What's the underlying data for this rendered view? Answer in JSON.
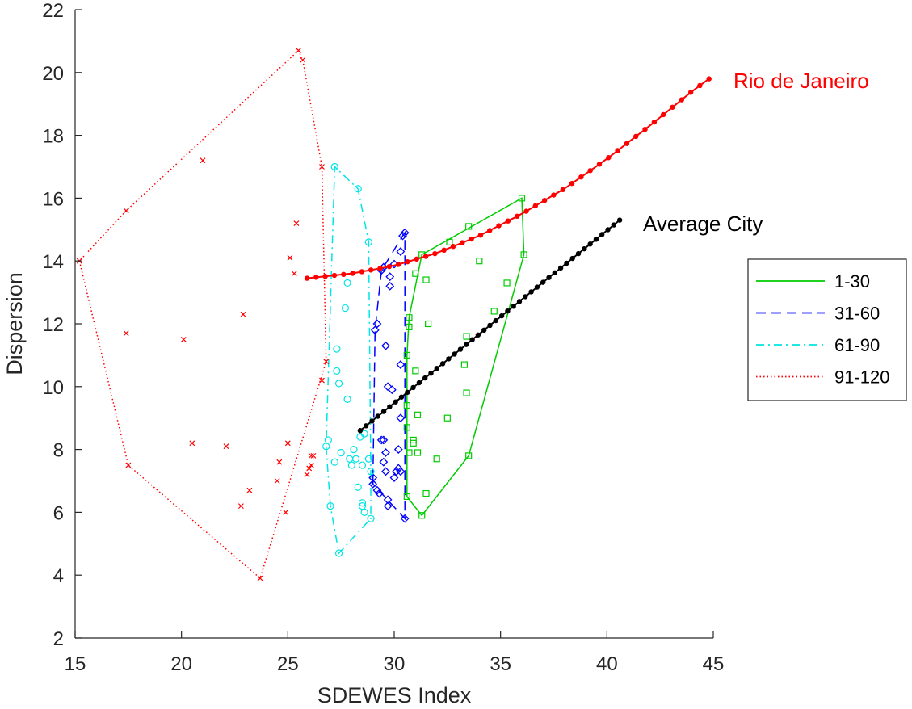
{
  "chart_data": {
    "type": "scatter",
    "xlabel": "SDEWES Index",
    "ylabel": "Dispersion",
    "xlim": [
      15,
      45
    ],
    "ylim": [
      2,
      22
    ],
    "xticks": [
      "15",
      "20",
      "25",
      "30",
      "35",
      "40",
      "45"
    ],
    "yticks": [
      "2",
      "4",
      "6",
      "8",
      "10",
      "12",
      "14",
      "16",
      "18",
      "20",
      "22"
    ],
    "grid": false,
    "legend_position": "right",
    "groups": [
      {
        "name": "1-30",
        "color": "#00cc00",
        "marker": "square",
        "line_style": "solid",
        "points": [
          [
            30.7,
            12.2
          ],
          [
            30.7,
            11.9
          ],
          [
            30.6,
            11.0
          ],
          [
            30.6,
            9.4
          ],
          [
            30.6,
            8.7
          ],
          [
            30.7,
            7.9
          ],
          [
            30.9,
            8.3
          ],
          [
            30.9,
            8.2
          ],
          [
            31.0,
            10.5
          ],
          [
            31.0,
            13.6
          ],
          [
            31.1,
            9.1
          ],
          [
            31.1,
            7.9
          ],
          [
            31.3,
            14.2
          ],
          [
            31.3,
            5.9
          ],
          [
            31.5,
            6.6
          ],
          [
            31.5,
            13.4
          ],
          [
            31.6,
            12.0
          ],
          [
            32.0,
            7.7
          ],
          [
            32.5,
            9.0
          ],
          [
            32.6,
            14.6
          ],
          [
            33.3,
            10.7
          ],
          [
            33.4,
            11.6
          ],
          [
            33.5,
            7.8
          ],
          [
            33.4,
            9.8
          ],
          [
            33.5,
            15.1
          ],
          [
            34.0,
            14.0
          ],
          [
            34.7,
            12.4
          ],
          [
            35.3,
            13.3
          ],
          [
            36.0,
            16.0
          ],
          [
            36.1,
            14.2
          ],
          [
            30.6,
            6.5
          ]
        ],
        "hull": [
          [
            30.6,
            6.5
          ],
          [
            31.3,
            5.9
          ],
          [
            33.5,
            7.8
          ],
          [
            36.1,
            14.2
          ],
          [
            36.0,
            16.0
          ],
          [
            31.3,
            14.2
          ],
          [
            30.7,
            12.2
          ],
          [
            30.6,
            11.0
          ],
          [
            30.6,
            6.5
          ]
        ]
      },
      {
        "name": "31-60",
        "color": "#0000ff",
        "marker": "diamond",
        "line_style": "dashed",
        "points": [
          [
            29.0,
            7.1
          ],
          [
            29.0,
            6.9
          ],
          [
            29.1,
            11.8
          ],
          [
            29.2,
            12.0
          ],
          [
            29.2,
            6.7
          ],
          [
            29.3,
            6.6
          ],
          [
            29.4,
            13.7
          ],
          [
            29.4,
            8.3
          ],
          [
            29.5,
            7.6
          ],
          [
            29.5,
            13.8
          ],
          [
            29.5,
            8.3
          ],
          [
            29.6,
            7.9
          ],
          [
            29.6,
            7.3
          ],
          [
            29.6,
            11.3
          ],
          [
            29.7,
            6.4
          ],
          [
            29.7,
            6.2
          ],
          [
            29.7,
            10.0
          ],
          [
            29.8,
            13.2
          ],
          [
            29.8,
            13.5
          ],
          [
            29.9,
            9.9
          ],
          [
            30.0,
            7.1
          ],
          [
            30.0,
            13.9
          ],
          [
            30.1,
            7.3
          ],
          [
            30.2,
            7.4
          ],
          [
            30.3,
            14.3
          ],
          [
            30.3,
            10.7
          ],
          [
            30.3,
            9.0
          ],
          [
            30.3,
            7.3
          ],
          [
            30.4,
            14.8
          ],
          [
            30.5,
            14.9
          ],
          [
            30.5,
            5.8
          ],
          [
            30.2,
            8.0
          ]
        ],
        "hull": [
          [
            29.0,
            7.1
          ],
          [
            29.0,
            6.9
          ],
          [
            30.5,
            5.8
          ],
          [
            30.5,
            14.9
          ],
          [
            30.4,
            14.8
          ],
          [
            29.4,
            13.7
          ],
          [
            29.1,
            11.8
          ],
          [
            29.0,
            7.1
          ]
        ]
      },
      {
        "name": "61-90",
        "color": "#00e5e5",
        "marker": "circle",
        "line_style": "dashdot",
        "points": [
          [
            26.8,
            8.1
          ],
          [
            26.9,
            8.3
          ],
          [
            27.0,
            6.2
          ],
          [
            27.2,
            17.0
          ],
          [
            27.2,
            7.6
          ],
          [
            27.3,
            11.2
          ],
          [
            27.3,
            10.5
          ],
          [
            27.4,
            10.1
          ],
          [
            27.4,
            4.7
          ],
          [
            27.5,
            7.9
          ],
          [
            27.7,
            12.5
          ],
          [
            27.8,
            13.3
          ],
          [
            27.8,
            9.6
          ],
          [
            27.9,
            7.7
          ],
          [
            28.0,
            7.5
          ],
          [
            28.1,
            8.0
          ],
          [
            28.2,
            7.7
          ],
          [
            28.3,
            16.3
          ],
          [
            28.3,
            6.8
          ],
          [
            28.4,
            8.4
          ],
          [
            28.5,
            7.5
          ],
          [
            28.5,
            6.3
          ],
          [
            28.5,
            6.2
          ],
          [
            28.6,
            6.0
          ],
          [
            28.6,
            8.5
          ],
          [
            28.8,
            14.6
          ],
          [
            28.8,
            7.7
          ],
          [
            28.9,
            5.8
          ],
          [
            28.9,
            7.3
          ]
        ],
        "hull": [
          [
            26.8,
            8.1
          ],
          [
            27.0,
            6.2
          ],
          [
            27.4,
            4.7
          ],
          [
            28.9,
            5.8
          ],
          [
            28.9,
            7.3
          ],
          [
            28.8,
            14.6
          ],
          [
            28.3,
            16.3
          ],
          [
            27.2,
            17.0
          ],
          [
            26.8,
            8.1
          ]
        ]
      },
      {
        "name": "91-120",
        "color": "#ff0000",
        "marker": "cross",
        "line_style": "dotted",
        "points": [
          [
            15.2,
            14.0
          ],
          [
            17.4,
            15.6
          ],
          [
            17.4,
            11.7
          ],
          [
            17.5,
            7.5
          ],
          [
            20.1,
            11.5
          ],
          [
            20.5,
            8.2
          ],
          [
            21.0,
            17.2
          ],
          [
            22.1,
            8.1
          ],
          [
            22.8,
            6.2
          ],
          [
            22.9,
            12.3
          ],
          [
            23.2,
            6.7
          ],
          [
            24.5,
            7.0
          ],
          [
            24.6,
            7.6
          ],
          [
            23.7,
            3.9
          ],
          [
            24.9,
            6.0
          ],
          [
            25.0,
            8.2
          ],
          [
            25.1,
            14.1
          ],
          [
            25.3,
            13.6
          ],
          [
            25.4,
            15.2
          ],
          [
            25.5,
            20.7
          ],
          [
            25.7,
            20.4
          ],
          [
            25.9,
            7.2
          ],
          [
            26.0,
            7.4
          ],
          [
            26.1,
            7.5
          ],
          [
            26.1,
            7.8
          ],
          [
            26.2,
            7.8
          ],
          [
            26.6,
            17.0
          ],
          [
            26.6,
            10.2
          ],
          [
            26.8,
            10.8
          ]
        ],
        "hull": [
          [
            15.2,
            14.0
          ],
          [
            17.5,
            7.5
          ],
          [
            23.7,
            3.9
          ],
          [
            26.8,
            10.8
          ],
          [
            26.6,
            17.0
          ],
          [
            25.7,
            20.4
          ],
          [
            25.5,
            20.7
          ],
          [
            17.4,
            15.6
          ],
          [
            15.2,
            14.0
          ]
        ]
      }
    ],
    "trend_lines": [
      {
        "label": "Rio de Janeiro",
        "color": "#ff0000",
        "x_start": 25.9,
        "x_end": 44.8,
        "n_points": 45,
        "points": [
          [
            25.9,
            13.45
          ],
          [
            28.0,
            13.6
          ],
          [
            30.0,
            13.85
          ],
          [
            32.0,
            14.25
          ],
          [
            34.0,
            14.8
          ],
          [
            36.0,
            15.5
          ],
          [
            38.0,
            16.3
          ],
          [
            40.0,
            17.25
          ],
          [
            42.0,
            18.3
          ],
          [
            44.0,
            19.4
          ],
          [
            44.8,
            19.8
          ]
        ]
      },
      {
        "label": "Average City",
        "color": "#000000",
        "x_start": 28.4,
        "x_end": 40.6,
        "n_points": 45,
        "points": [
          [
            28.4,
            8.6
          ],
          [
            40.6,
            15.3
          ]
        ]
      }
    ]
  }
}
